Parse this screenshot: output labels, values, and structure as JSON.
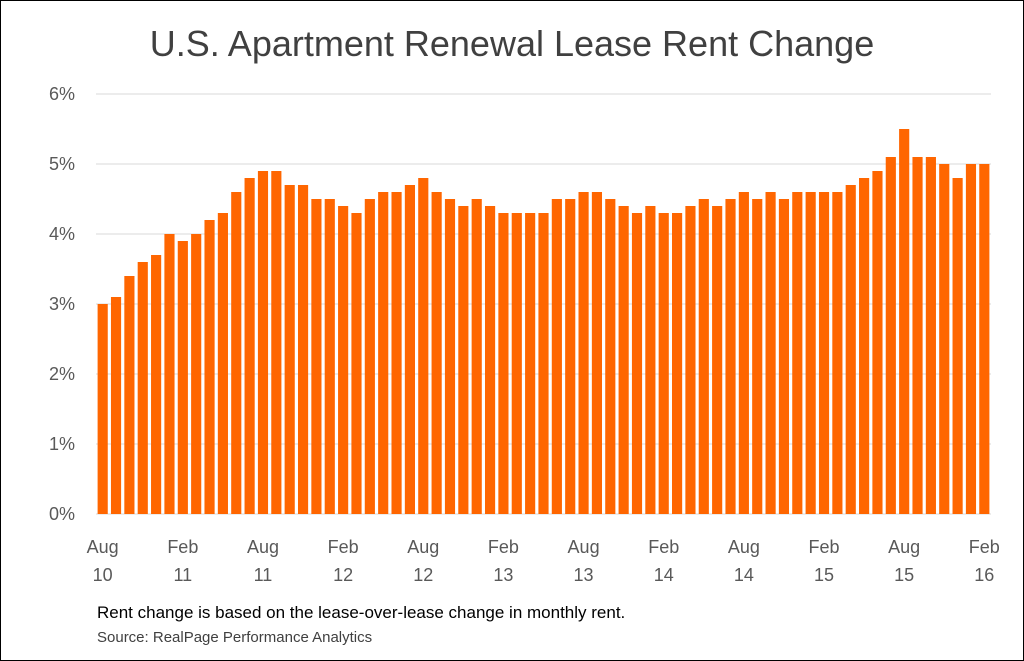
{
  "chart_data": {
    "type": "bar",
    "title": "U.S. Apartment Renewal Lease Rent Change",
    "xlabel": "",
    "ylabel": "",
    "ylim": [
      0,
      6
    ],
    "yticks": [
      "0%",
      "1%",
      "2%",
      "3%",
      "4%",
      "5%",
      "6%"
    ],
    "grid": true,
    "bar_color": "#FF6600",
    "start": "Aug 2010",
    "end": "Feb 2016",
    "xtick_labels": [
      [
        "Aug",
        "10"
      ],
      [
        "Feb",
        "11"
      ],
      [
        "Aug",
        "11"
      ],
      [
        "Feb",
        "12"
      ],
      [
        "Aug",
        "12"
      ],
      [
        "Feb",
        "13"
      ],
      [
        "Aug",
        "13"
      ],
      [
        "Feb",
        "14"
      ],
      [
        "Aug",
        "14"
      ],
      [
        "Feb",
        "15"
      ],
      [
        "Aug",
        "15"
      ],
      [
        "Feb",
        "16"
      ]
    ],
    "values": [
      3.0,
      3.1,
      3.4,
      3.6,
      3.7,
      4.0,
      3.9,
      4.0,
      4.2,
      4.3,
      4.6,
      4.8,
      4.9,
      4.9,
      4.7,
      4.7,
      4.5,
      4.5,
      4.4,
      4.3,
      4.5,
      4.6,
      4.6,
      4.7,
      4.8,
      4.6,
      4.5,
      4.4,
      4.5,
      4.4,
      4.3,
      4.3,
      4.3,
      4.3,
      4.5,
      4.5,
      4.6,
      4.6,
      4.5,
      4.4,
      4.3,
      4.4,
      4.3,
      4.3,
      4.4,
      4.5,
      4.4,
      4.5,
      4.6,
      4.5,
      4.6,
      4.5,
      4.6,
      4.6,
      4.6,
      4.6,
      4.7,
      4.8,
      4.9,
      5.1,
      5.5,
      5.1,
      5.1,
      5.0,
      4.8,
      5.0,
      5.0
    ]
  },
  "footer": {
    "note": "Rent change is based on the lease-over-lease  change in monthly rent.",
    "source": "Source: RealPage Performance Analytics"
  }
}
